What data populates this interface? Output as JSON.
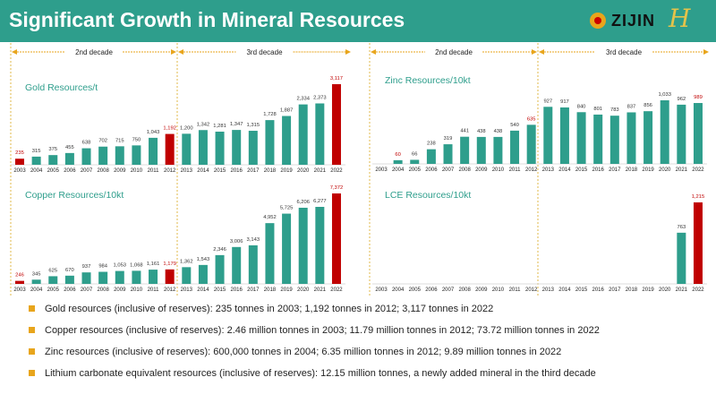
{
  "header": {
    "title": "Significant Growth in Mineral Resources",
    "logo_text": "ZIJIN"
  },
  "decades": {
    "second": "2nd decade",
    "third": "3rd decade"
  },
  "colors": {
    "teal": "#2e9e8c",
    "red": "#c00000",
    "gold": "#e8a51c"
  },
  "chart_data": [
    {
      "type": "bar",
      "title": "Gold Resources/t",
      "categories": [
        "2003",
        "2004",
        "2005",
        "2006",
        "2007",
        "2008",
        "2009",
        "2010",
        "2011",
        "2012",
        "2013",
        "2014",
        "2015",
        "2016",
        "2017",
        "2018",
        "2019",
        "2020",
        "2021",
        "2022"
      ],
      "values": [
        235,
        315,
        375,
        455,
        638,
        702,
        715,
        750,
        1043,
        1192,
        1200,
        1342,
        1281,
        1347,
        1315,
        1728,
        1887,
        2334,
        2373,
        3117
      ],
      "highlight_bars": [
        "2003",
        "2012",
        "2022"
      ],
      "highlight_labels": [
        "2003",
        "2012",
        "2022"
      ]
    },
    {
      "type": "bar",
      "title": "Copper Resources/10kt",
      "categories": [
        "2003",
        "2004",
        "2005",
        "2006",
        "2007",
        "2008",
        "2009",
        "2010",
        "2011",
        "2012",
        "2013",
        "2014",
        "2015",
        "2016",
        "2017",
        "2018",
        "2019",
        "2020",
        "2021",
        "2022"
      ],
      "values": [
        246,
        345,
        625,
        670,
        937,
        984,
        1053,
        1068,
        1161,
        1179,
        1362,
        1543,
        2346,
        3006,
        3143,
        4952,
        5725,
        6206,
        6277,
        7372
      ],
      "highlight_bars": [
        "2003",
        "2012",
        "2022"
      ],
      "highlight_labels": [
        "2003",
        "2012",
        "2022"
      ]
    },
    {
      "type": "bar",
      "title": "Zinc Resources/10kt",
      "categories": [
        "2003",
        "2004",
        "2005",
        "2006",
        "2007",
        "2008",
        "2009",
        "2010",
        "2011",
        "2012",
        "2013",
        "2014",
        "2015",
        "2016",
        "2017",
        "2018",
        "2019",
        "2020",
        "2021",
        "2022"
      ],
      "values": [
        null,
        60,
        66,
        238,
        319,
        441,
        438,
        438,
        540,
        635,
        927,
        917,
        840,
        801,
        783,
        837,
        856,
        1033,
        962,
        989
      ],
      "highlight_bars": [],
      "highlight_labels": [
        "2004",
        "2012",
        "2022"
      ]
    },
    {
      "type": "bar",
      "title": "LCE Resources/10kt",
      "categories": [
        "2003",
        "2004",
        "2005",
        "2006",
        "2007",
        "2008",
        "2009",
        "2010",
        "2011",
        "2012",
        "2013",
        "2014",
        "2015",
        "2016",
        "2017",
        "2018",
        "2019",
        "2020",
        "2021",
        "2022"
      ],
      "values": [
        null,
        null,
        null,
        null,
        null,
        null,
        null,
        null,
        null,
        null,
        null,
        null,
        null,
        null,
        null,
        null,
        null,
        null,
        763,
        1215
      ],
      "highlight_bars": [
        "2022"
      ],
      "highlight_labels": [
        "2022"
      ]
    }
  ],
  "bullets": [
    "Gold resources (inclusive of reserves): 235 tonnes in 2003; 1,192 tonnes in 2012; 3,117 tonnes in 2022",
    "Copper resources (inclusive of reserves): 2.46 million tonnes in 2003; 11.79 million tonnes in 2012; 73.72 million tonnes in 2022",
    "Zinc resources (inclusive of reserves): 600,000 tonnes in 2004; 6.35 million tonnes in 2012; 9.89 million tonnes in 2022",
    "Lithium carbonate equivalent resources (inclusive of reserves): 12.15 million tonnes, a newly added mineral in the third decade"
  ]
}
